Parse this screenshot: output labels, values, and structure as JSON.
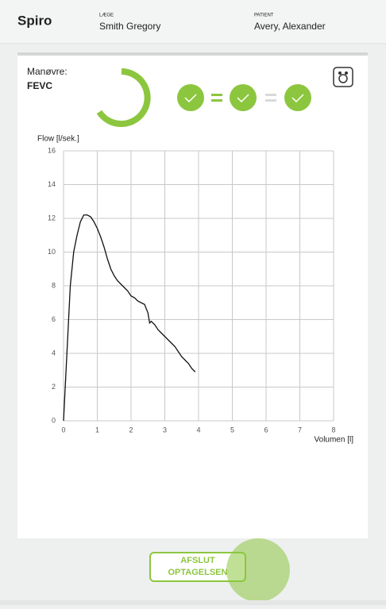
{
  "header": {
    "app_name": "Spiro",
    "doctor_label": "LÆGE",
    "doctor": "Smith Gregory",
    "patient_label": "PATIENT",
    "patient": "Avery, Alexander"
  },
  "maneuver": {
    "label": "Manøvre:",
    "value": "FEVC"
  },
  "chart_data": {
    "type": "line",
    "y_label": "Flow [l/sek.]",
    "x_label": "Volumen [l]",
    "x": [
      0,
      0.1,
      0.2,
      0.3,
      0.4,
      0.5,
      0.6,
      0.7,
      0.8,
      0.9,
      1.0,
      1.1,
      1.2,
      1.3,
      1.4,
      1.5,
      1.6,
      1.7,
      1.8,
      1.9,
      2.0,
      2.1,
      2.2,
      2.3,
      2.4,
      2.5,
      2.55,
      2.6,
      2.7,
      2.8,
      2.9,
      3.0,
      3.1,
      3.2,
      3.3,
      3.4,
      3.5,
      3.6,
      3.7,
      3.8,
      3.9
    ],
    "series": [
      {
        "name": "Flow",
        "color": "#111111",
        "values": [
          0,
          4,
          8,
          10,
          11,
          11.8,
          12.2,
          12.2,
          12.1,
          11.8,
          11.4,
          10.9,
          10.3,
          9.6,
          9.0,
          8.6,
          8.3,
          8.1,
          7.9,
          7.7,
          7.4,
          7.3,
          7.1,
          7.0,
          6.9,
          6.4,
          5.8,
          5.9,
          5.7,
          5.4,
          5.2,
          5.0,
          4.8,
          4.6,
          4.4,
          4.1,
          3.8,
          3.6,
          3.4,
          3.1,
          2.9
        ]
      }
    ],
    "xlim": [
      0,
      8
    ],
    "xticks": [
      0,
      1,
      2,
      3,
      4,
      5,
      6,
      7,
      8
    ],
    "ylim": [
      0,
      16
    ],
    "yticks": [
      0,
      2,
      4,
      6,
      8,
      10,
      12,
      14,
      16
    ],
    "grid": true
  },
  "button": {
    "label_lines": [
      "AFSLUT",
      "OPTAGELSEN"
    ]
  }
}
